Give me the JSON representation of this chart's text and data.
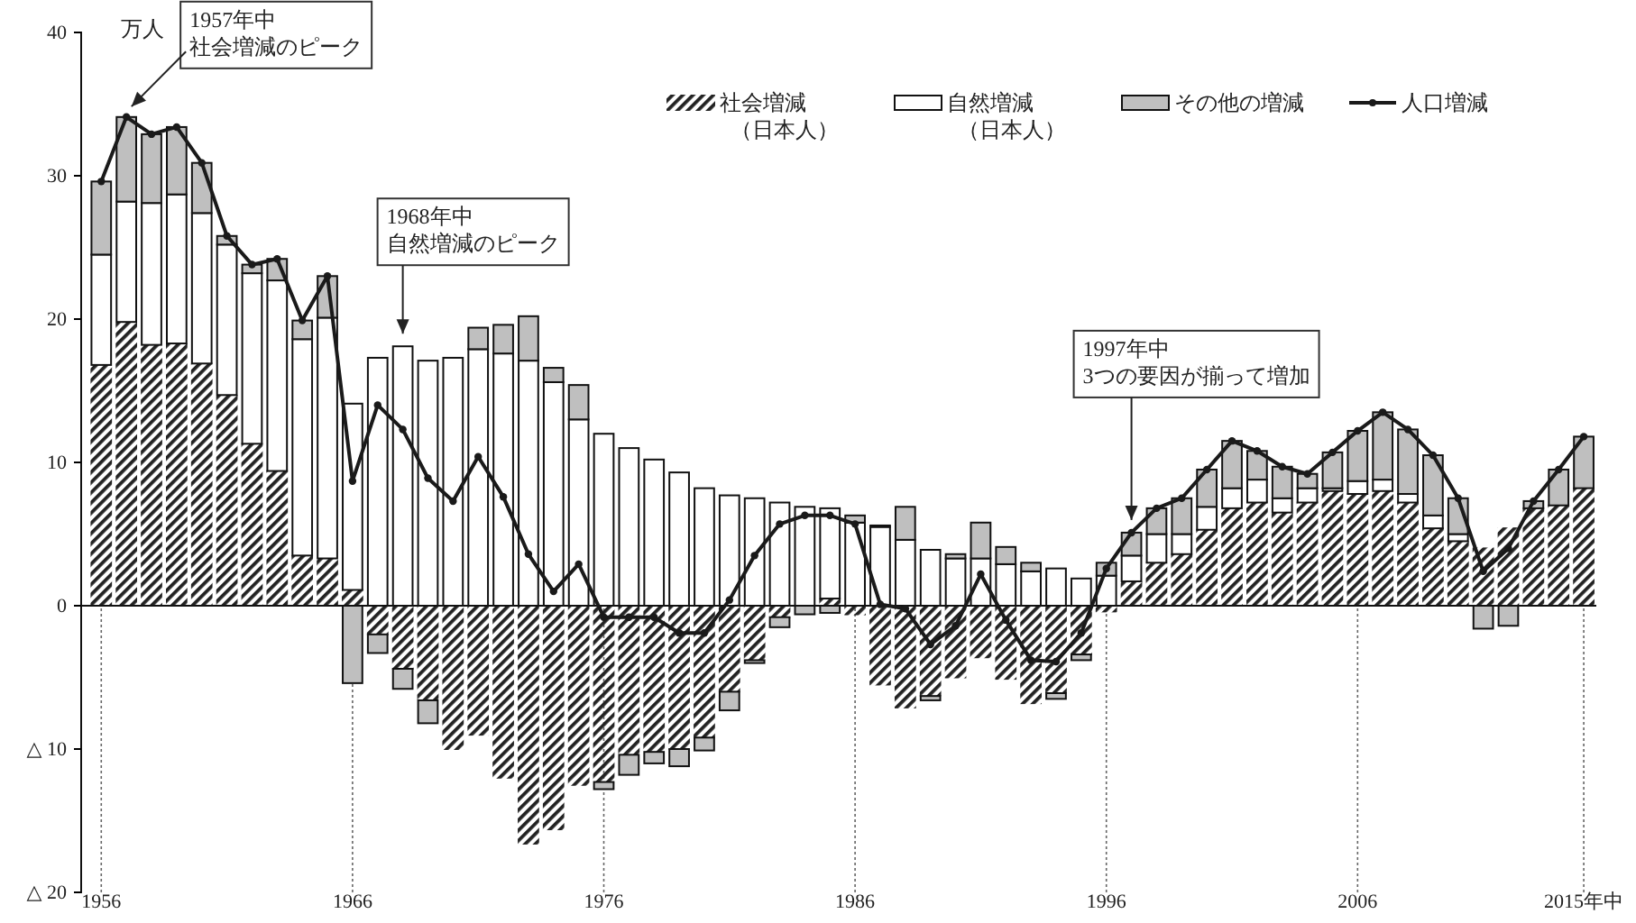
{
  "chart_data": {
    "type": "bar",
    "stacked": true,
    "ylabel": "万人",
    "x": [
      1956,
      1957,
      1958,
      1959,
      1960,
      1961,
      1962,
      1963,
      1964,
      1965,
      1966,
      1967,
      1968,
      1969,
      1970,
      1971,
      1972,
      1973,
      1974,
      1975,
      1976,
      1977,
      1978,
      1979,
      1980,
      1981,
      1982,
      1983,
      1984,
      1985,
      1986,
      1987,
      1988,
      1989,
      1990,
      1991,
      1992,
      1993,
      1994,
      1995,
      1996,
      1997,
      1998,
      1999,
      2000,
      2001,
      2002,
      2003,
      2004,
      2005,
      2006,
      2007,
      2008,
      2009,
      2010,
      2011,
      2012,
      2013,
      2014,
      2015
    ],
    "xlim": [
      1955.2,
      2015.5
    ],
    "xticks": [
      1956,
      1966,
      1976,
      1986,
      1996,
      2006,
      {
        "value": 2015,
        "label": "2015年中"
      }
    ],
    "ylim": [
      -20,
      40
    ],
    "yticks": [
      {
        "value": -20,
        "label": "△ 20"
      },
      {
        "value": -10,
        "label": "△ 10"
      },
      0,
      10,
      20,
      30,
      40
    ],
    "legend": "top right",
    "marker": "circle",
    "ref_lines": [
      {
        "axis": "y",
        "value": 0,
        "color": "#111111",
        "line_style": "solid"
      },
      {
        "axis": "x",
        "value": 1956,
        "color": "#666666",
        "line_style": "dotted"
      },
      {
        "axis": "x",
        "value": 1966,
        "color": "#666666",
        "line_style": "dotted"
      },
      {
        "axis": "x",
        "value": 1976,
        "color": "#666666",
        "line_style": "dotted"
      },
      {
        "axis": "x",
        "value": 1986,
        "color": "#666666",
        "line_style": "dotted"
      },
      {
        "axis": "x",
        "value": 1996,
        "color": "#666666",
        "line_style": "dotted"
      },
      {
        "axis": "x",
        "value": 2006,
        "color": "#666666",
        "line_style": "dotted"
      },
      {
        "axis": "x",
        "value": 2015,
        "color": "#666666",
        "line_style": "dotted"
      }
    ],
    "series": [
      {
        "name": "社会増減（日本人）",
        "color": "#222222",
        "values": [
          16.8,
          19.8,
          18.2,
          18.3,
          16.9,
          14.7,
          11.3,
          9.4,
          3.5,
          3.3,
          1.1,
          -2.0,
          -4.4,
          -6.6,
          -10.0,
          -9.0,
          -12.0,
          -16.6,
          -15.6,
          -12.5,
          -12.3,
          -10.4,
          -10.2,
          -10.0,
          -9.2,
          -6.0,
          -3.8,
          -0.8,
          0,
          0.5,
          -0.6,
          -5.5,
          -7.1,
          -6.3,
          -5.0,
          -3.6,
          -5.1,
          -6.8,
          -6.1,
          -3.4,
          -0.4,
          1.7,
          3.0,
          3.6,
          5.3,
          6.8,
          7.2,
          6.5,
          7.2,
          8.0,
          7.8,
          8.0,
          7.2,
          5.4,
          4.5,
          4.0,
          5.4,
          6.8,
          7.0,
          8.2
        ]
      },
      {
        "name": "自然増減（日本人）",
        "color": "#ffffff",
        "values": [
          7.7,
          8.4,
          9.9,
          10.4,
          10.5,
          10.5,
          11.9,
          13.3,
          15.1,
          16.8,
          13.0,
          17.3,
          18.1,
          17.1,
          17.3,
          17.9,
          17.6,
          17.1,
          15.6,
          13.0,
          12.0,
          11.0,
          10.2,
          9.3,
          8.2,
          7.7,
          7.5,
          7.2,
          6.9,
          6.3,
          5.8,
          5.5,
          4.6,
          3.9,
          3.3,
          3.3,
          2.9,
          2.4,
          2.6,
          1.9,
          2.1,
          1.8,
          2.0,
          1.4,
          1.6,
          1.4,
          1.6,
          1.0,
          1.0,
          0.2,
          0.9,
          0.8,
          0.6,
          0.9,
          0.5,
          0,
          0,
          0,
          0,
          0
        ]
      },
      {
        "name": "その他の増減",
        "color": "#bfbfbf",
        "values": [
          5.1,
          5.9,
          4.8,
          4.7,
          3.5,
          0.6,
          0.6,
          1.5,
          1.3,
          2.9,
          -5.4,
          -1.3,
          -1.4,
          -1.6,
          0,
          1.5,
          2.0,
          3.1,
          1.0,
          2.4,
          -0.5,
          -1.4,
          -0.8,
          -1.2,
          -0.9,
          -1.3,
          -0.2,
          -0.7,
          -0.6,
          -0.5,
          0.5,
          0.1,
          2.3,
          -0.3,
          0.3,
          2.5,
          1.2,
          0.6,
          -0.4,
          -0.4,
          0.9,
          1.6,
          1.8,
          2.5,
          2.6,
          3.3,
          2.0,
          2.2,
          1.0,
          2.5,
          3.5,
          4.7,
          4.5,
          4.2,
          2.5,
          -1.6,
          -1.4,
          0.5,
          2.5,
          3.6
        ]
      },
      {
        "name": "人口増減",
        "type": "line",
        "color": "#1a1a1a",
        "values": [
          29.6,
          34.1,
          32.9,
          33.4,
          30.9,
          25.8,
          23.8,
          24.2,
          19.9,
          23.0,
          8.7,
          14.0,
          12.3,
          8.9,
          7.3,
          10.4,
          7.6,
          3.6,
          1.0,
          2.9,
          -0.8,
          -0.8,
          -0.8,
          -1.9,
          -1.9,
          0.4,
          3.5,
          5.7,
          6.3,
          6.3,
          5.7,
          0.1,
          -0.2,
          -2.7,
          -1.4,
          2.2,
          -1.0,
          -3.8,
          -3.9,
          -1.9,
          2.6,
          5.1,
          6.8,
          7.5,
          9.5,
          11.5,
          10.8,
          9.7,
          9.2,
          10.7,
          12.2,
          13.5,
          12.3,
          10.5,
          7.5,
          2.4,
          4.0,
          7.3,
          9.5,
          11.8
        ]
      }
    ],
    "annotations": [
      {
        "text": "1957年中社会増減のピーク",
        "x": 1957,
        "y": 34.1
      },
      {
        "text": "1968年中自然増減のピーク",
        "x": 1968,
        "y": 18.1
      },
      {
        "text": "1997年中3つの要因が揃って増加",
        "x": 1997,
        "y": 5.1
      }
    ]
  }
}
